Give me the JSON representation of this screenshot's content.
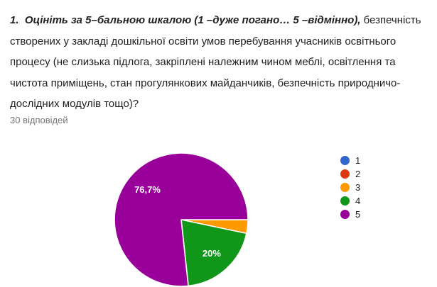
{
  "page": {
    "background": "#ffffff"
  },
  "question": {
    "emphasis": "1.  Оцініть за 5–бальною шкалою (1 –дуже погано… 5 –відмінно),",
    "rest": " безпечність створених у закладі дошкільної освіти умов перебування учасників освітнього процесу (не слизька підлога, закріплені належним чином меблі, освітлення та чистота приміщень, стан прогулянкових майданчиків, безпечність природничо-дослідних модулів тощо)?",
    "text_color": "#212121"
  },
  "responses": {
    "label": "30 відповідей",
    "text_color": "#757575"
  },
  "chart_data": {
    "type": "pie",
    "title": "",
    "categories": [
      "1",
      "2",
      "3",
      "4",
      "5"
    ],
    "values_percent": [
      0,
      0,
      3.3,
      20,
      76.7
    ],
    "slice_labels": [
      "",
      "",
      "",
      "20%",
      "76,7%"
    ],
    "colors": [
      "#3366cc",
      "#dc3912",
      "#ff9900",
      "#109618",
      "#990099"
    ],
    "slice_border_color": "#ffffff",
    "label_text_color": "#ffffff",
    "legend_position": "right",
    "start_angle": "east-clockwise"
  }
}
